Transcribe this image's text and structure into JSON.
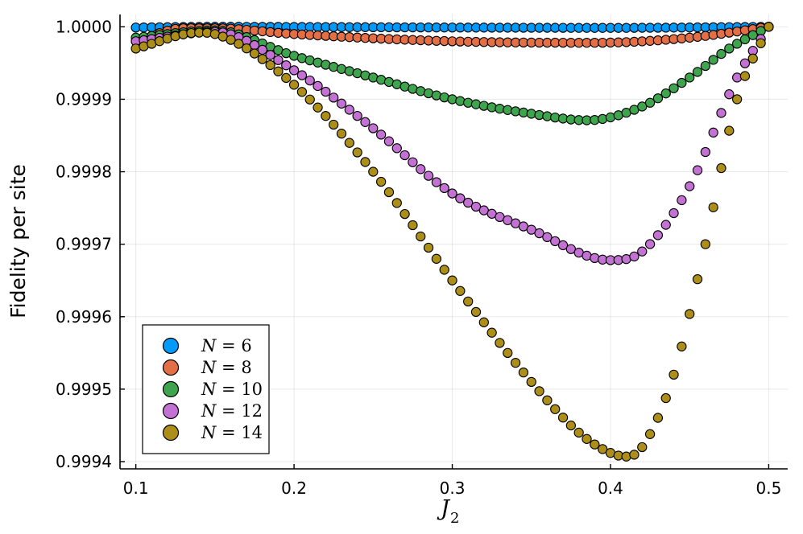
{
  "chart_data": {
    "type": "scatter",
    "title": "",
    "xlabel": {
      "symbol": "J",
      "subscript": "2"
    },
    "ylabel": "Fidelity per site",
    "xlim": [
      0.09,
      0.512
    ],
    "ylim": [
      0.99939,
      1.000017
    ],
    "xticks": [
      0.1,
      0.2,
      0.3,
      0.4,
      0.5
    ],
    "xtick_labels": [
      "0.1",
      "0.2",
      "0.3",
      "0.4",
      "0.5"
    ],
    "yticks": [
      0.9994,
      0.9995,
      0.9996,
      0.9997,
      0.9998,
      0.9999,
      1.0
    ],
    "ytick_labels": [
      "0.9994",
      "0.9995",
      "0.9996",
      "0.9997",
      "0.9998",
      "0.9999",
      "1.0000"
    ],
    "grid": true,
    "legend_position": "bottom-left",
    "x_start": 0.1,
    "x_step": 0.005,
    "series": [
      {
        "name": "N = 6",
        "n_label": "6",
        "color": "#009AFA",
        "anchors": [
          [
            0.1,
            0.999999
          ],
          [
            0.15,
            1.0
          ],
          [
            0.3,
            0.999999
          ],
          [
            0.4,
            0.9999985
          ],
          [
            0.5,
            1.0
          ]
        ]
      },
      {
        "name": "N = 8",
        "n_label": "8",
        "color": "#E36F47",
        "anchors": [
          [
            0.1,
            0.99998
          ],
          [
            0.13,
            0.999998
          ],
          [
            0.15,
            0.999998
          ],
          [
            0.2,
            0.99999
          ],
          [
            0.3,
            0.99998
          ],
          [
            0.39,
            0.999978
          ],
          [
            0.45,
            0.999985
          ],
          [
            0.5,
            1.0
          ]
        ]
      },
      {
        "name": "N = 10",
        "n_label": "10",
        "color": "#3EA44E",
        "anchors": [
          [
            0.1,
            0.999985
          ],
          [
            0.15,
            0.999995
          ],
          [
            0.2,
            0.99996
          ],
          [
            0.25,
            0.99993
          ],
          [
            0.3,
            0.9999
          ],
          [
            0.35,
            0.99988
          ],
          [
            0.385,
            0.999871
          ],
          [
            0.42,
            0.99989
          ],
          [
            0.45,
            0.99993
          ],
          [
            0.475,
            0.99997
          ],
          [
            0.5,
            1.0
          ]
        ]
      },
      {
        "name": "N = 12",
        "n_label": "12",
        "color": "#C371D2",
        "anchors": [
          [
            0.1,
            0.99998
          ],
          [
            0.15,
            0.999993
          ],
          [
            0.2,
            0.99994
          ],
          [
            0.25,
            0.99986
          ],
          [
            0.3,
            0.99977
          ],
          [
            0.35,
            0.99972
          ],
          [
            0.4,
            0.999678
          ],
          [
            0.42,
            0.99969
          ],
          [
            0.45,
            0.99978
          ],
          [
            0.48,
            0.99993
          ],
          [
            0.5,
            1.0
          ]
        ]
      },
      {
        "name": "N = 14",
        "n_label": "14",
        "color": "#AC8E18",
        "anchors": [
          [
            0.1,
            0.99997
          ],
          [
            0.14,
            0.999992
          ],
          [
            0.15,
            0.99999
          ],
          [
            0.2,
            0.99992
          ],
          [
            0.25,
            0.9998
          ],
          [
            0.3,
            0.99965
          ],
          [
            0.35,
            0.99951
          ],
          [
            0.38,
            0.99944
          ],
          [
            0.4,
            0.999412
          ],
          [
            0.41,
            0.999407
          ],
          [
            0.42,
            0.99942
          ],
          [
            0.44,
            0.99952
          ],
          [
            0.46,
            0.9997
          ],
          [
            0.48,
            0.9999
          ],
          [
            0.5,
            1.0
          ]
        ]
      }
    ]
  }
}
